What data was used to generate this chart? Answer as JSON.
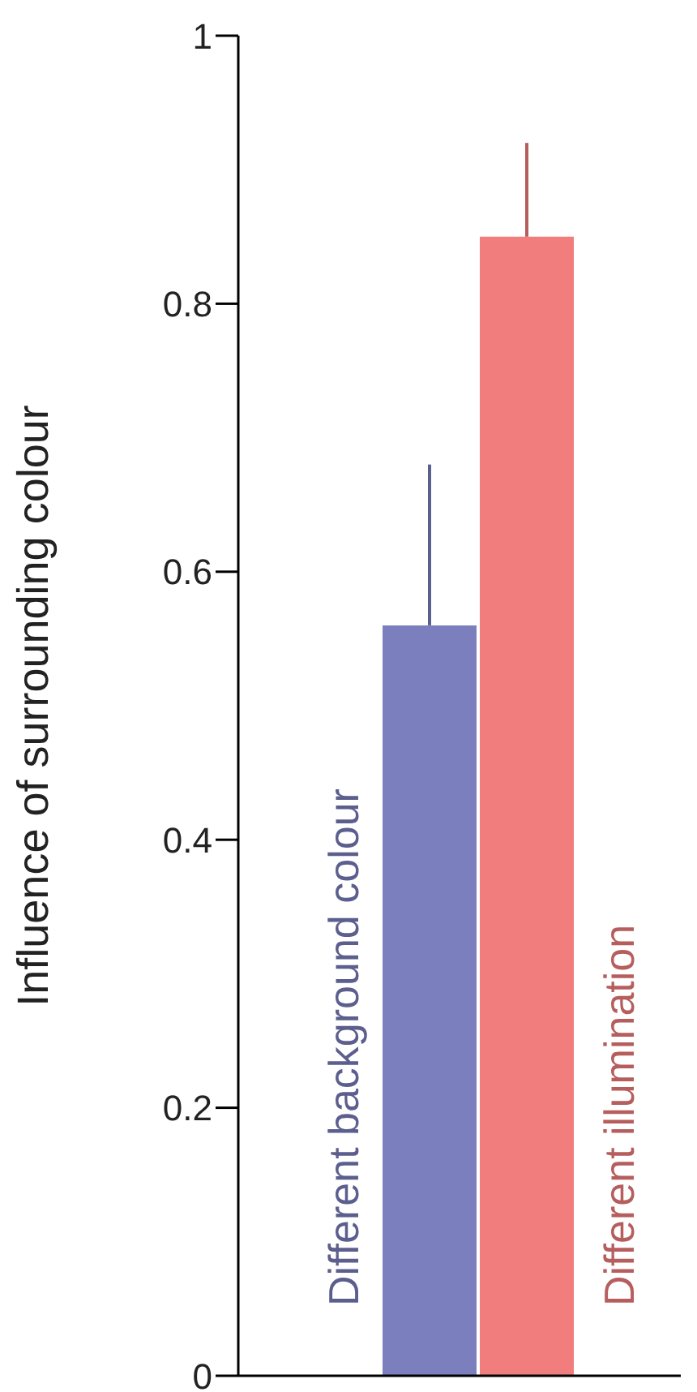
{
  "chart_data": {
    "type": "bar",
    "ylabel": "Influence of surrounding colour",
    "categories": [
      "Different background colour",
      "Different illumination"
    ],
    "values": [
      0.56,
      0.85
    ],
    "errors": [
      [
        0.56,
        0.68
      ],
      [
        0.85,
        0.92
      ]
    ],
    "colors": [
      "#7b7fbd",
      "#f27d7d"
    ],
    "ylim": [
      0,
      1
    ],
    "yticks": [
      0,
      0.2,
      0.4,
      0.6,
      0.8,
      1
    ],
    "grid": false,
    "legend": false
  }
}
